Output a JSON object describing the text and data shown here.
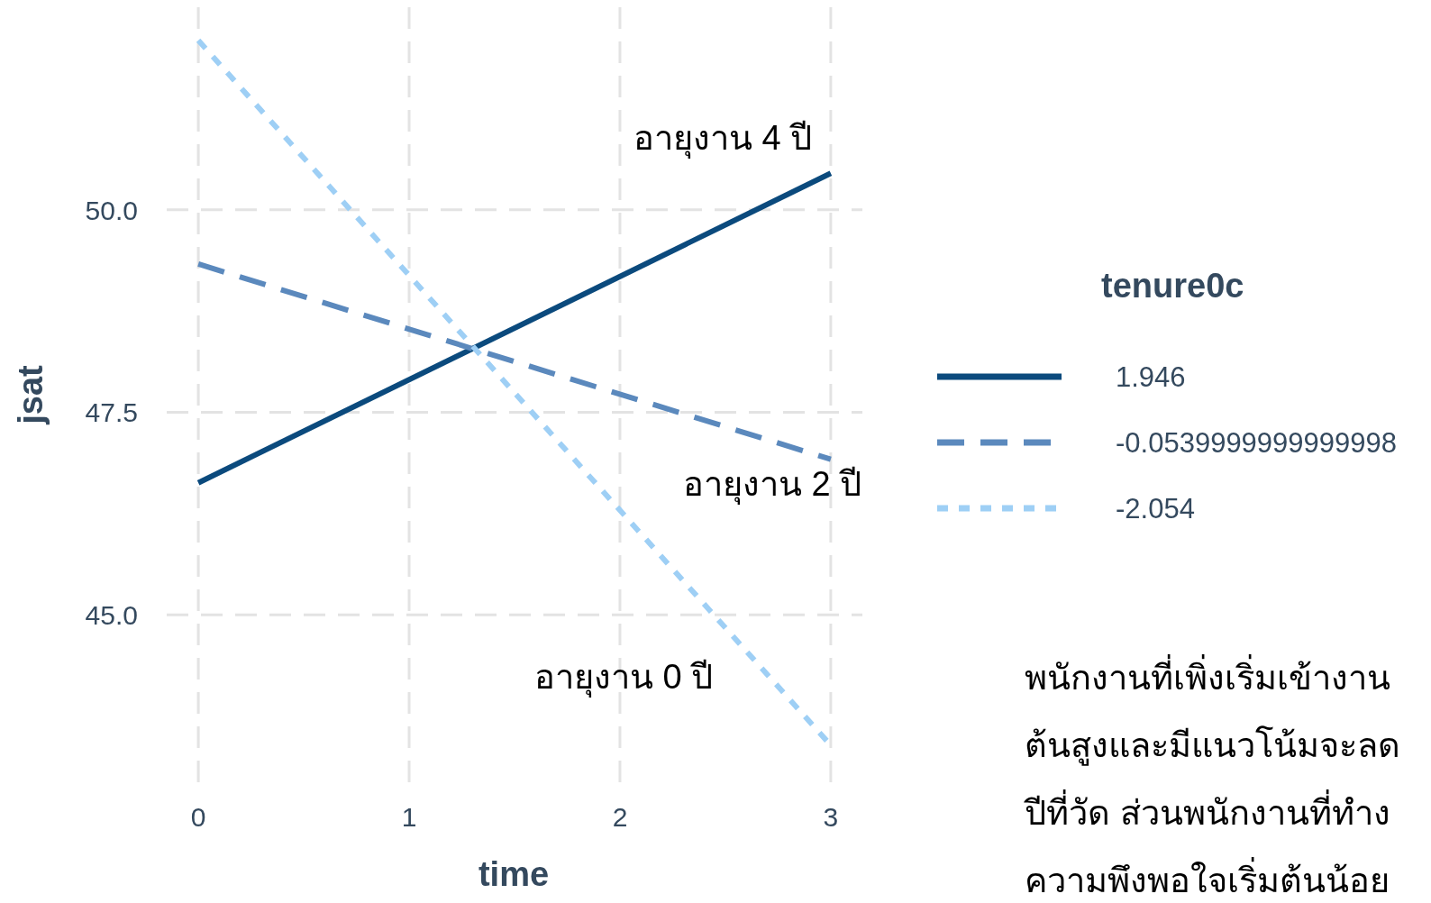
{
  "chart_data": {
    "type": "line",
    "xlabel": "time",
    "ylabel": "jsat",
    "legend_title": "tenure0c",
    "x": [
      0,
      3
    ],
    "series": [
      {
        "name": "1.946",
        "color": "#0b4a7d",
        "line_style": "solid",
        "values": [
          46.63,
          50.45
        ]
      },
      {
        "name": "-0.0539999999999998",
        "color": "#5b89bd",
        "line_style": "dashed",
        "values": [
          49.33,
          46.92
        ]
      },
      {
        "name": "-2.054",
        "color": "#9ecff5",
        "line_style": "dotted",
        "values": [
          52.09,
          43.39
        ]
      }
    ],
    "xlim": [
      -0.15,
      3.15
    ],
    "ylim": [
      42.9,
      52.5
    ],
    "xticks": [
      0,
      1,
      2,
      3
    ],
    "yticks": [
      {
        "value": 45,
        "label": "45.0"
      },
      {
        "value": 47.5,
        "label": "47.5"
      },
      {
        "value": 50,
        "label": "50.0"
      }
    ],
    "grid": true,
    "legend": "right",
    "marker": "none",
    "annotations": [
      "อายุงาน 4 ปี",
      "อายุงาน 2 ปี",
      "อายุงาน 0 ปี",
      "พนักงานที่เพิ่งเริ่มเข้างาน",
      "ต้นสูงและมีแนวโน้มจะลด",
      "ปีที่วัด ส่วนพนักงานที่ทำง",
      "ความพึงพอใจเริ่มต้นน้อย"
    ]
  }
}
